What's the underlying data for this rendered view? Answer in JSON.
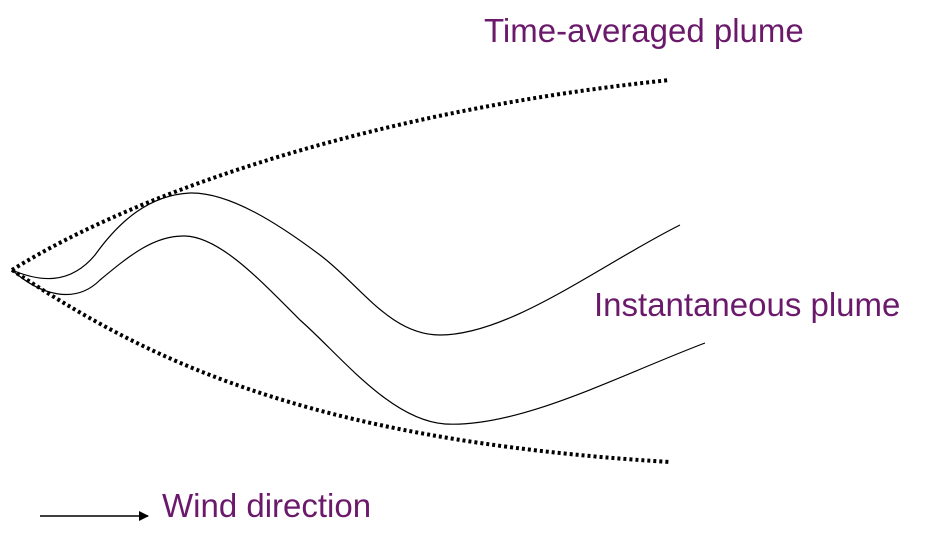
{
  "labels": {
    "time_averaged_plume": "Time-averaged plume",
    "instantaneous_plume": "Instantaneous plume",
    "wind_direction": "Wind direction"
  },
  "colors": {
    "label_text": "#6b1a6b",
    "lines": "#000000",
    "background": "#ffffff"
  }
}
